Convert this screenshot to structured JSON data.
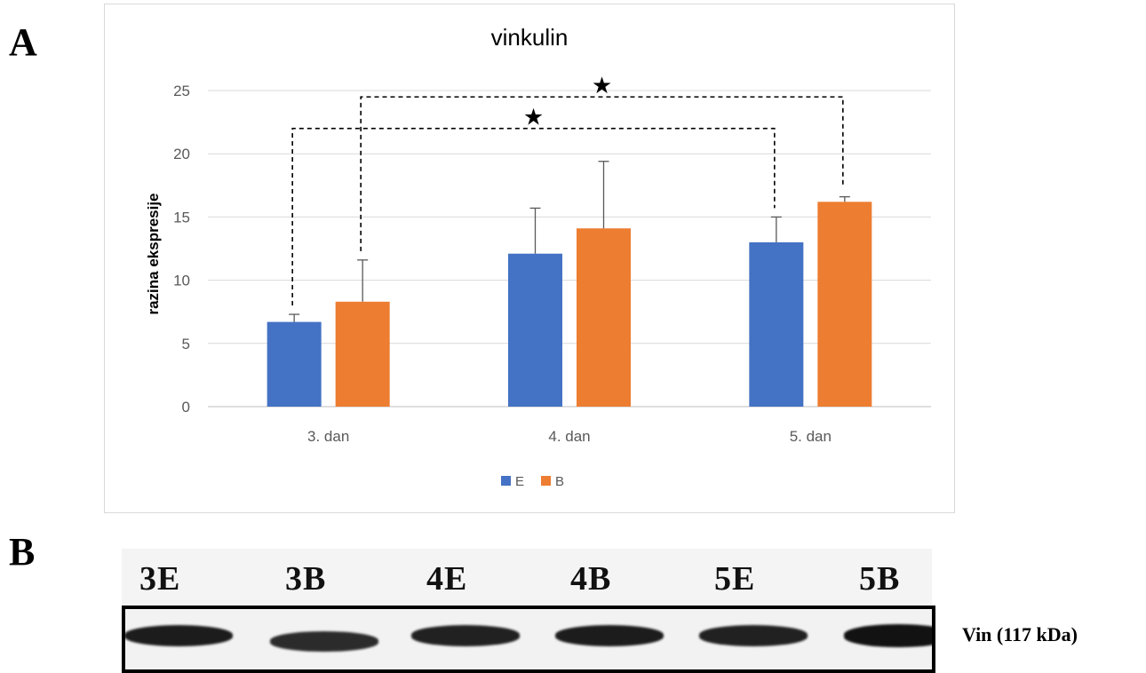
{
  "panels": {
    "a": "A",
    "b": "B"
  },
  "chart_data": {
    "type": "bar",
    "title": "vinkulin",
    "xlabel": "",
    "ylabel": "razina ekspresije",
    "categories": [
      "3. dan",
      "4. dan",
      "5. dan"
    ],
    "ylim": [
      0,
      25
    ],
    "yticks": [
      0,
      5,
      10,
      15,
      20,
      25
    ],
    "grid": true,
    "legend_position": "bottom",
    "series": [
      {
        "name": "E",
        "color": "#4472C4",
        "values": [
          6.7,
          12.1,
          13.0
        ],
        "errors": [
          0.6,
          3.6,
          2.0
        ]
      },
      {
        "name": "B",
        "color": "#ED7D31",
        "values": [
          8.3,
          14.1,
          16.2
        ],
        "errors": [
          3.3,
          5.3,
          0.4
        ]
      }
    ],
    "significance": [
      {
        "from": "3. dan E",
        "to": "5. dan E",
        "level": 22,
        "marker": "★"
      },
      {
        "from": "3. dan B",
        "to": "5. dan B",
        "level": 24.5,
        "marker": "★"
      }
    ]
  },
  "blot": {
    "lanes": [
      "3E",
      "3B",
      "4E",
      "4B",
      "5E",
      "5B"
    ],
    "band_intensity": [
      0.85,
      0.7,
      0.8,
      0.85,
      0.8,
      0.95
    ],
    "protein_label": "Vin (117 kDa)"
  }
}
